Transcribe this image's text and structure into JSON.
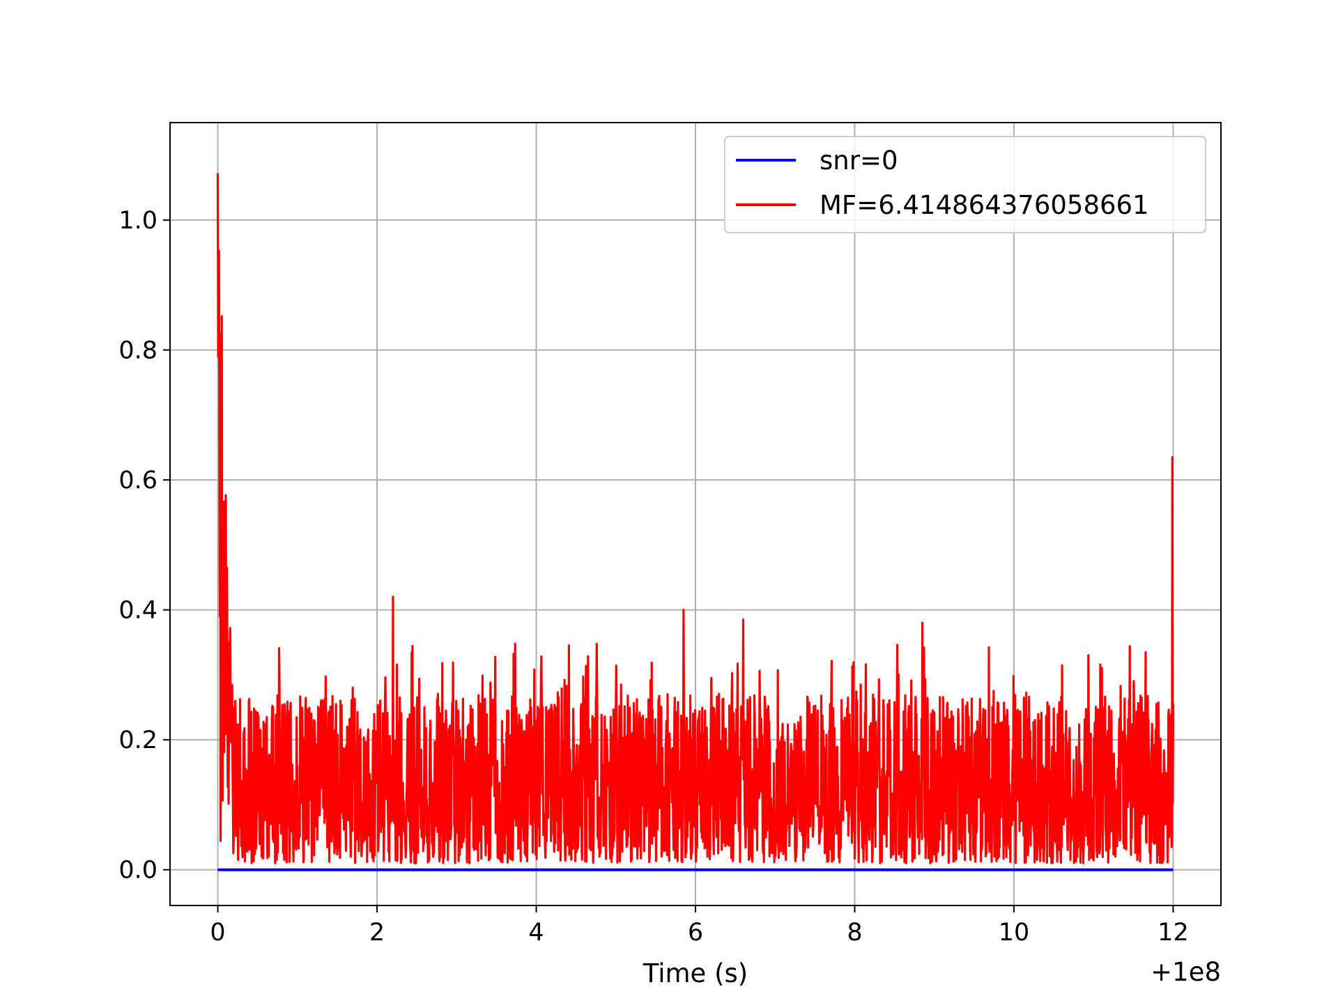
{
  "chart_data": {
    "type": "line",
    "title": "",
    "xlabel": "Time (s)",
    "ylabel": "",
    "x_offset_label": "+1e8",
    "xlim": [
      -0.6,
      12.6
    ],
    "ylim": [
      -0.055,
      1.15
    ],
    "x_ticks": [
      0,
      2,
      4,
      6,
      8,
      10,
      12
    ],
    "x_tick_labels": [
      "0",
      "2",
      "4",
      "6",
      "8",
      "10",
      "12"
    ],
    "y_ticks": [
      0.0,
      0.2,
      0.4,
      0.6,
      0.8,
      1.0
    ],
    "y_tick_labels": [
      "0.0",
      "0.2",
      "0.4",
      "0.6",
      "0.8",
      "1.0"
    ],
    "grid": true,
    "legend_position": "top-right",
    "series": [
      {
        "name": "snr=0",
        "color": "#0000ff",
        "x": [
          0,
          12
        ],
        "y": [
          0.0,
          0.0
        ]
      },
      {
        "name": "MF=6.414864376058661",
        "color": "#ff0000",
        "noisy": true,
        "x_range": [
          0,
          12
        ],
        "initial_peak": 1.095,
        "baseline_mean": 0.11,
        "baseline_max": 0.35,
        "end_spike": 0.635,
        "notable_spikes": [
          {
            "x": 2.2,
            "y": 0.42
          },
          {
            "x": 5.85,
            "y": 0.4
          },
          {
            "x": 6.6,
            "y": 0.385
          },
          {
            "x": 8.85,
            "y": 0.38
          }
        ]
      }
    ]
  }
}
